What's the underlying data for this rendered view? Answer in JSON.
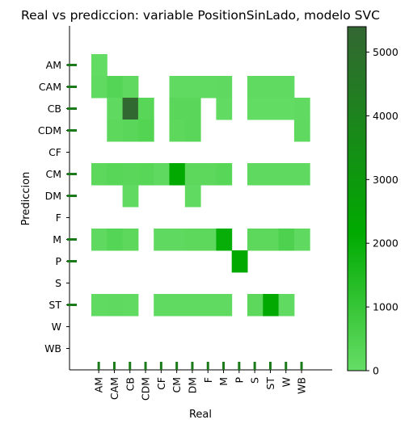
{
  "chart_data": {
    "type": "heatmap",
    "title": "Real vs prediccion: variable PositionSinLado, modelo SVC",
    "xlabel": "Real",
    "ylabel": "Prediccion",
    "x_categories": [
      "AM",
      "CAM",
      "CB",
      "CDM",
      "CF",
      "CM",
      "DM",
      "F",
      "M",
      "P",
      "S",
      "ST",
      "W",
      "WB"
    ],
    "y_categories": [
      "AM",
      "CAM",
      "CB",
      "CDM",
      "CF",
      "CM",
      "DM",
      "F",
      "M",
      "P",
      "S",
      "ST",
      "W",
      "WB"
    ],
    "values": [
      [
        60,
        0,
        0,
        0,
        0,
        0,
        0,
        0,
        0,
        0,
        0,
        0,
        0,
        0
      ],
      [
        120,
        350,
        150,
        0,
        0,
        120,
        120,
        120,
        150,
        0,
        120,
        120,
        120,
        0
      ],
      [
        0,
        150,
        5300,
        300,
        0,
        250,
        250,
        0,
        100,
        0,
        60,
        60,
        60,
        120
      ],
      [
        0,
        200,
        250,
        400,
        0,
        200,
        250,
        0,
        0,
        0,
        0,
        0,
        0,
        150
      ],
      [
        0,
        0,
        0,
        0,
        0,
        0,
        0,
        0,
        0,
        0,
        0,
        0,
        0,
        0
      ],
      [
        200,
        300,
        250,
        300,
        150,
        2200,
        200,
        200,
        300,
        0,
        150,
        150,
        150,
        150
      ],
      [
        0,
        0,
        120,
        0,
        0,
        0,
        120,
        0,
        0,
        0,
        0,
        0,
        0,
        0
      ],
      [
        0,
        0,
        0,
        0,
        0,
        0,
        0,
        0,
        0,
        0,
        0,
        0,
        0,
        0
      ],
      [
        150,
        350,
        200,
        0,
        150,
        150,
        200,
        200,
        2000,
        0,
        200,
        200,
        500,
        150
      ],
      [
        0,
        0,
        0,
        0,
        0,
        0,
        0,
        0,
        0,
        2200,
        0,
        0,
        0,
        0
      ],
      [
        0,
        0,
        0,
        0,
        0,
        0,
        0,
        0,
        0,
        0,
        0,
        0,
        0,
        0
      ],
      [
        120,
        150,
        120,
        0,
        120,
        120,
        120,
        120,
        120,
        0,
        200,
        2200,
        120,
        0
      ],
      [
        0,
        0,
        0,
        0,
        0,
        0,
        0,
        0,
        0,
        0,
        0,
        0,
        0,
        0
      ],
      [
        0,
        0,
        0,
        0,
        0,
        0,
        0,
        0,
        0,
        0,
        0,
        0,
        0,
        0
      ]
    ],
    "colorbar": {
      "min": 0,
      "max": 5400,
      "ticks": [
        0,
        1000,
        2000,
        3000,
        4000,
        5000
      ],
      "tick_labels": [
        "0",
        "1000",
        "2000",
        "3000",
        "4000",
        "5000"
      ],
      "colors": [
        "#66dd66",
        "#00aa00",
        "#336633"
      ]
    },
    "marker_color": "#1a7a1a",
    "grid": false
  }
}
